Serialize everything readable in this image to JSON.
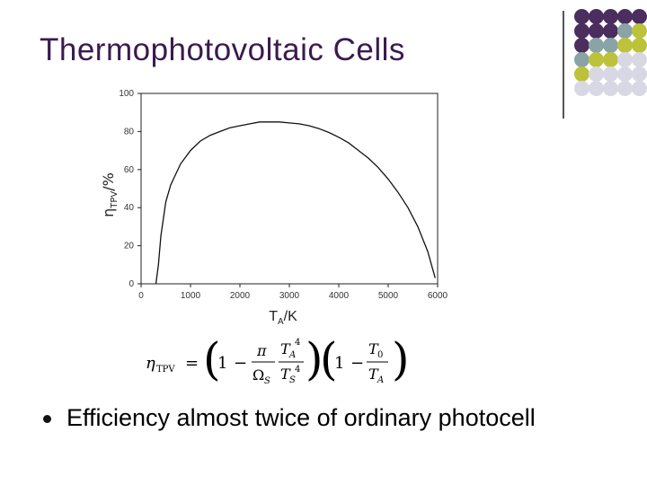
{
  "slide": {
    "title": "Thermophotovoltaic Cells",
    "bullet": "Efficiency almost twice of ordinary photocell"
  },
  "decoration": {
    "dot_colors": [
      "#4b2d5e",
      "#8aa3a6",
      "#bcc23a",
      "#d8d8e4"
    ],
    "dot_grid": [
      [
        0,
        0,
        0,
        0,
        0
      ],
      [
        0,
        0,
        0,
        1,
        2
      ],
      [
        0,
        1,
        1,
        2,
        2
      ],
      [
        1,
        2,
        2,
        3,
        3
      ],
      [
        2,
        3,
        3,
        3,
        3
      ],
      [
        3,
        3,
        3,
        3,
        3
      ]
    ]
  },
  "chart_data": {
    "type": "line",
    "xlabel_main": "T",
    "xlabel_sub": "A",
    "xlabel_unit": "/K",
    "ylabel_main": "η",
    "ylabel_sub": "TPV",
    "ylabel_unit": "/%",
    "xlim": [
      0,
      6000
    ],
    "ylim": [
      0,
      100
    ],
    "xticks": [
      0,
      1000,
      2000,
      3000,
      4000,
      5000,
      6000
    ],
    "yticks": [
      0,
      20,
      40,
      60,
      80,
      100
    ],
    "series": [
      {
        "x": [
          300,
          350,
          400,
          500,
          600,
          800,
          1000,
          1200,
          1400,
          1600,
          1800,
          2000,
          2200,
          2400,
          2600,
          2800,
          3000,
          3200,
          3400,
          3600,
          3800,
          4000,
          4200,
          4400,
          4600,
          4800,
          5000,
          5200,
          5400,
          5600,
          5800,
          5950
        ],
        "y": [
          0,
          10,
          25,
          43,
          52,
          63,
          70,
          75,
          78,
          80,
          82,
          83,
          84,
          85,
          85,
          85,
          84.5,
          84,
          83,
          81.5,
          79.5,
          77,
          74,
          70,
          66,
          61,
          55,
          48,
          40,
          30,
          17,
          3
        ]
      }
    ]
  },
  "formula": {
    "lhs_eta": "η",
    "lhs_sub": "TPV",
    "eq": "=",
    "one": "1",
    "minus": "−",
    "pi": "π",
    "omega": "Ω",
    "omega_sub": "S",
    "ta": "T",
    "ta_sub": "A",
    "ts": "T",
    "ts_sub": "S",
    "pow4": "4",
    "t0": "T",
    "t0_sub": "0",
    "ta2": "T",
    "ta2_sub": "A"
  }
}
